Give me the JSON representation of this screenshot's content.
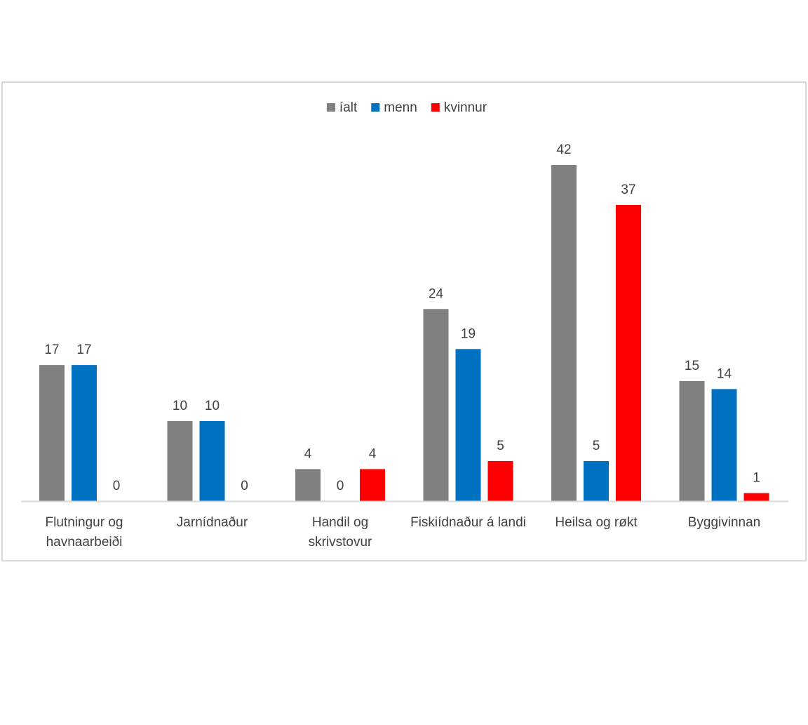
{
  "chart_data": {
    "type": "bar",
    "categories": [
      [
        "Flutningur og",
        "havnaarbeiði"
      ],
      [
        "Jarnídnaður"
      ],
      [
        "Handil og",
        "skrivstovur"
      ],
      [
        "Fiskiídnaður á landi"
      ],
      [
        "Heilsa og røkt"
      ],
      [
        "Byggivinnan"
      ]
    ],
    "series": [
      {
        "name": "íalt",
        "color": "#808080",
        "values": [
          17,
          10,
          4,
          24,
          42,
          15
        ]
      },
      {
        "name": "menn",
        "color": "#0070C0",
        "values": [
          17,
          10,
          0,
          19,
          5,
          14
        ]
      },
      {
        "name": "kvinnur",
        "color": "#FF0000",
        "values": [
          0,
          0,
          4,
          5,
          37,
          1
        ]
      }
    ],
    "title": "",
    "xlabel": "",
    "ylabel": "",
    "ylim": [
      0,
      45
    ],
    "grid": false,
    "legend_position": "top",
    "axis_color": "#d9d9d9",
    "text_color": "#404040"
  }
}
